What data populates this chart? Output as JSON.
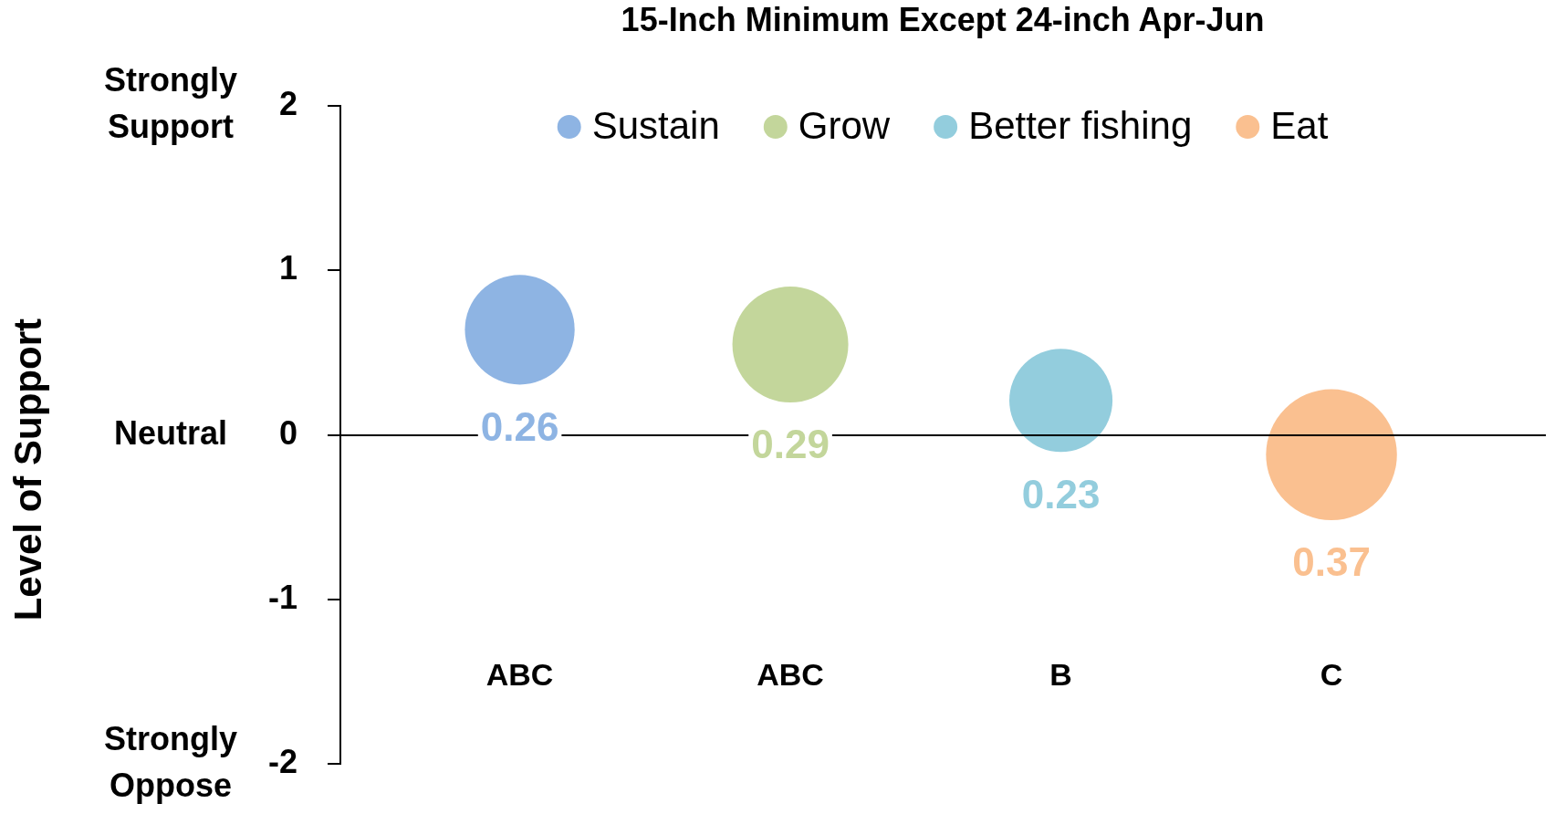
{
  "chart_data": {
    "type": "bubble",
    "title": "15-Inch Minimum Except 24-inch Apr-Jun",
    "categories": [
      null,
      null,
      null,
      null
    ],
    "series": [
      {
        "name": "Sustain",
        "color": "#8eb4e3",
        "values": [
          0.64,
          null,
          null,
          null
        ],
        "sizes": [
          0.26,
          null,
          null,
          null
        ],
        "value_labels": [
          "0.26",
          null,
          null,
          null
        ]
      },
      {
        "name": "Grow",
        "color": "#c3d69b",
        "values": [
          null,
          0.55,
          null,
          null
        ],
        "sizes": [
          null,
          0.29,
          null,
          null
        ],
        "value_labels": [
          null,
          "0.29",
          null,
          null
        ]
      },
      {
        "name": "Better fishing",
        "color": "#93cddd",
        "values": [
          null,
          null,
          0.21,
          null
        ],
        "sizes": [
          null,
          null,
          0.23,
          null
        ],
        "value_labels": [
          null,
          null,
          "0.23",
          null
        ]
      },
      {
        "name": "Eat",
        "color": "#fac090",
        "values": [
          null,
          null,
          null,
          -0.12
        ],
        "sizes": [
          null,
          null,
          null,
          0.37
        ],
        "value_labels": [
          null,
          null,
          null,
          "0.37"
        ]
      }
    ],
    "ylim": [
      -2,
      2
    ],
    "yticks": [
      -2,
      -1,
      0,
      1,
      2
    ],
    "y2_categories": [
      "Strongly Support",
      null,
      "Neutral",
      null,
      "Strongly Oppose"
    ],
    "annotations": [
      "ABC",
      "ABC",
      "B",
      "C",
      "Level of Support"
    ],
    "legend": "top"
  }
}
